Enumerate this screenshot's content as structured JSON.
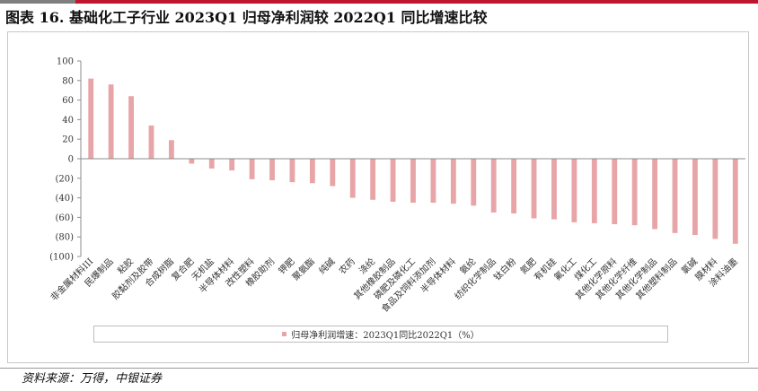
{
  "header": {
    "title": "图表 16. 基础化工子行业 2023Q1 归母净利润较 2022Q1 同比增速比较"
  },
  "footer": {
    "source": "资料来源：万得，中银证券"
  },
  "colors": {
    "bar": "#e8a5a8",
    "accent_red": "#c0152f",
    "accent_grey": "#7f7f7f"
  },
  "chart_data": {
    "type": "bar",
    "title": "",
    "xlabel": "",
    "ylabel": "",
    "ylim": [
      -100,
      100
    ],
    "yticks": [
      100,
      80,
      60,
      40,
      20,
      0,
      -20,
      -40,
      -60,
      -80,
      -100
    ],
    "ytick_labels": [
      "100",
      "80",
      "60",
      "40",
      "20",
      "0",
      "(20)",
      "(40)",
      "(60)",
      "(80)",
      "(100)"
    ],
    "grid": false,
    "legend_position": "bottom",
    "categories": [
      "非金属材料III",
      "民爆制品",
      "粘胶",
      "胶黏剂及胶带",
      "合成树脂",
      "复合肥",
      "无机盐",
      "半导体材料",
      "改性塑料",
      "橡胶助剂",
      "钾肥",
      "聚氨酯",
      "纯碱",
      "农药",
      "涤纶",
      "其他橡胶制品",
      "磷肥及磷化工",
      "食品及饲料添加剂",
      "半导体材料",
      "氨纶",
      "纺织化学制品",
      "钛白粉",
      "氮肥",
      "有机硅",
      "氟化工",
      "煤化工",
      "其他化学原料",
      "其他化学纤维",
      "其他化学制品",
      "其他塑料制品",
      "氯碱",
      "膜材料",
      "涂料油墨"
    ],
    "series": [
      {
        "name": "归母净利润增速：2023Q1同比2022Q1（%）",
        "values": [
          82,
          76,
          64,
          34,
          19,
          -5,
          -10,
          -12,
          -21,
          -22,
          -24,
          -25,
          -28,
          -40,
          -42,
          -44,
          -45,
          -45,
          -46,
          -48,
          -55,
          -56,
          -61,
          -62,
          -65,
          -66,
          -67,
          -68,
          -72,
          -76,
          -78,
          -82,
          -87
        ]
      }
    ]
  }
}
